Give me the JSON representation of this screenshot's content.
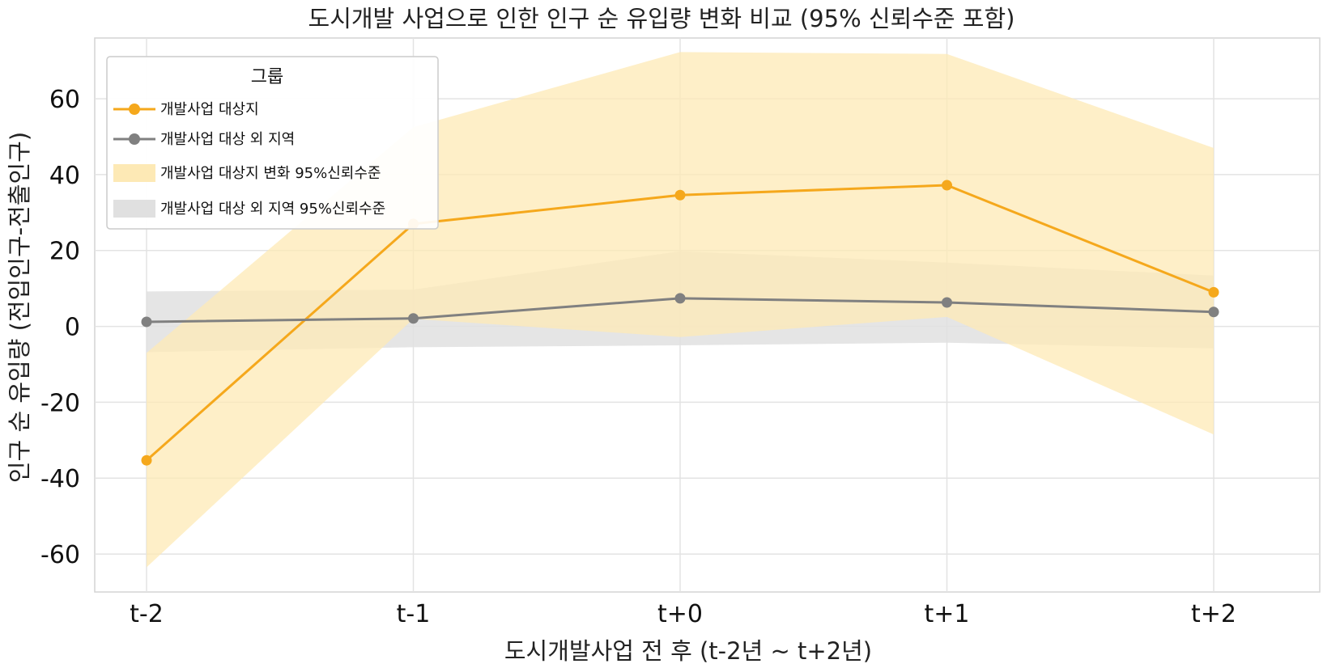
{
  "chart_data": {
    "type": "line",
    "title": "도시개발 사업으로 인한 인구 순 유입량 변화 비교 (95% 신뢰수준 포함)",
    "xlabel": "도시개발사업 전 후 (t-2년 ~ t+2년)",
    "ylabel": "인구 순 유입량 (전입인구-전출인구)",
    "categories": [
      "t-2",
      "t-1",
      "t+0",
      "t+1",
      "t+2"
    ],
    "ylim": [
      -70,
      76
    ],
    "yticks": [
      -60,
      -40,
      -20,
      0,
      20,
      40,
      60
    ],
    "grid": true,
    "legend": {
      "title": "그룹",
      "placement": "top-left",
      "entries": [
        "개발사업 대상지",
        "개발사업 대상 외 지역",
        "개발사업 대상지 변화 95%신뢰수준",
        "개발사업 대상 외 지역 95%신뢰수준"
      ]
    },
    "series": [
      {
        "name": "개발사업 대상지",
        "color": "#f5a81c",
        "values": [
          -35.3,
          27.0,
          34.6,
          37.2,
          9.0
        ],
        "ci_lower": [
          -63.5,
          2.0,
          -2.8,
          2.5,
          -28.5
        ],
        "ci_upper": [
          -7.0,
          52.5,
          72.3,
          71.8,
          47.0
        ]
      },
      {
        "name": "개발사업 대상 외 지역",
        "color": "#808080",
        "values": [
          1.2,
          2.1,
          7.4,
          6.3,
          3.8
        ],
        "ci_lower": [
          -6.8,
          -5.5,
          -5.0,
          -4.3,
          -5.8
        ],
        "ci_upper": [
          9.2,
          9.7,
          19.8,
          16.8,
          13.4
        ]
      }
    ],
    "band_colors": [
      "#fde9b5",
      "#e0e0e0"
    ]
  }
}
